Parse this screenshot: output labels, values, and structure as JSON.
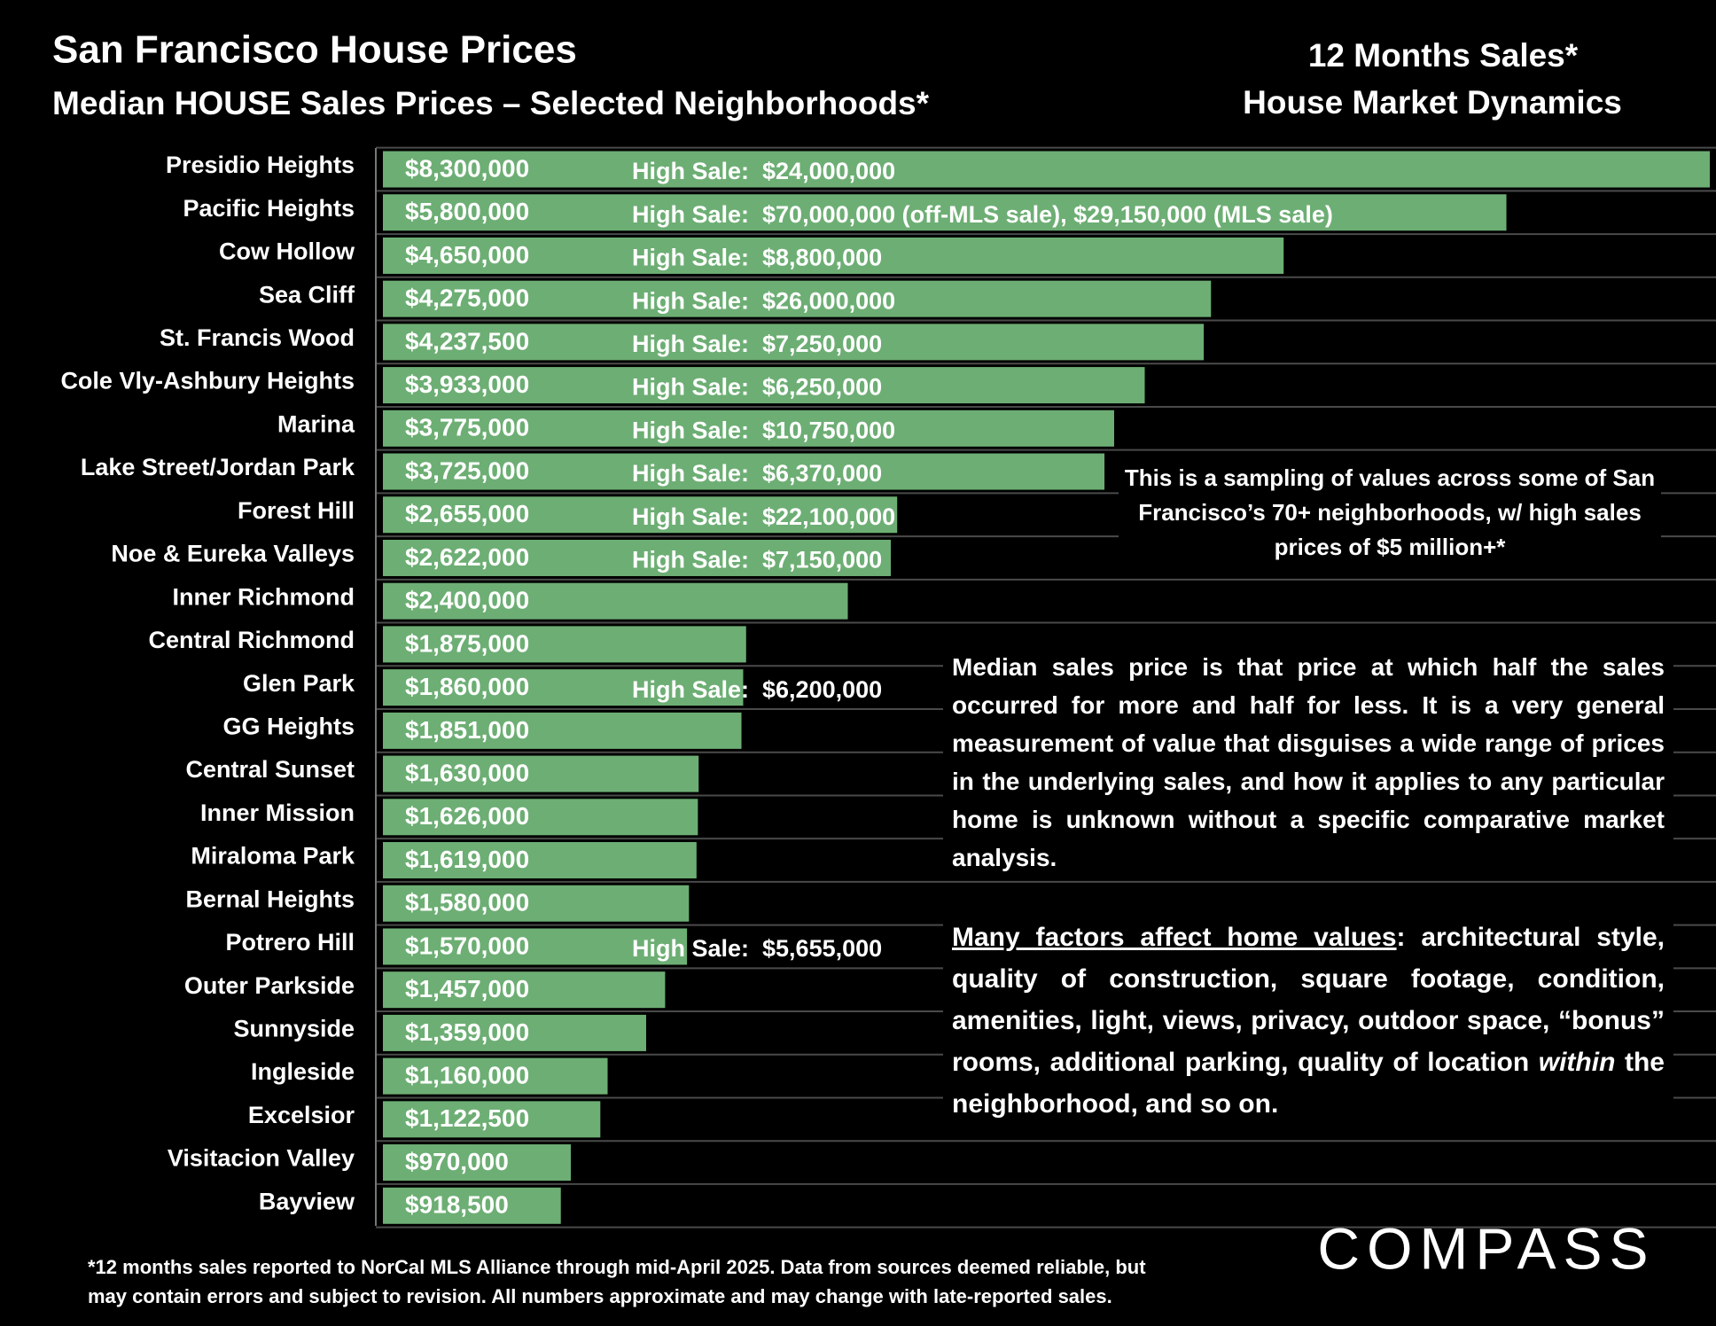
{
  "chart_data": {
    "type": "bar",
    "orientation": "horizontal",
    "title": "San Francisco House Prices",
    "subtitle": "Median HOUSE Sales Prices – Selected Neighborhoods*",
    "categories": [
      "Presidio Heights",
      "Pacific Heights",
      "Cow Hollow",
      "Sea Cliff",
      "St. Francis Wood",
      "Cole Vly-Ashbury Heights",
      "Marina",
      "Lake Street/Jordan Park",
      "Forest Hill",
      "Noe & Eureka Valleys",
      "Inner Richmond",
      "Central Richmond",
      "Glen Park",
      "GG Heights",
      "Central Sunset",
      "Inner Mission",
      "Miraloma Park",
      "Bernal Heights",
      "Potrero Hill",
      "Outer Parkside",
      "Sunnyside",
      "Ingleside",
      "Excelsior",
      "Visitacion Valley",
      "Bayview"
    ],
    "values": [
      8300000,
      5800000,
      4650000,
      4275000,
      4237500,
      3933000,
      3775000,
      3725000,
      2655000,
      2622000,
      2400000,
      1875000,
      1860000,
      1851000,
      1630000,
      1626000,
      1619000,
      1580000,
      1570000,
      1457000,
      1359000,
      1160000,
      1122500,
      970000,
      918500
    ],
    "value_labels": [
      "$8,300,000",
      "$5,800,000",
      "$4,650,000",
      "$4,275,000",
      "$4,237,500",
      "$3,933,000",
      "$3,775,000",
      "$3,725,000",
      "$2,655,000",
      "$2,622,000",
      "$2,400,000",
      "$1,875,000",
      "$1,860,000",
      "$1,851,000",
      "$1,630,000",
      "$1,626,000",
      "$1,619,000",
      "$1,580,000",
      "$1,570,000",
      "$1,457,000",
      "$1,359,000",
      "$1,160,000",
      "$1,122,500",
      "$970,000",
      "$918,500"
    ],
    "high_sales": [
      "High Sale:  $24,000,000",
      "High Sale:  $70,000,000 (off-MLS sale), $29,150,000 (MLS sale)",
      "High Sale:  $8,800,000",
      "High Sale:  $26,000,000",
      "High Sale:  $7,250,000",
      "High Sale:  $6,250,000",
      "High Sale:  $10,750,000",
      "High Sale:  $6,370,000",
      "High Sale:  $22,100,000",
      "High Sale:  $7,150,000",
      null,
      null,
      "High Sale:  $6,200,000",
      null,
      null,
      null,
      null,
      null,
      "High Sale:  $5,655,000",
      null,
      null,
      null,
      null,
      null,
      null
    ],
    "color": "#6dae74",
    "xlim": [
      0,
      6850000
    ]
  },
  "header": {
    "line1": "12 Months Sales*",
    "line2": "House Market Dynamics"
  },
  "notes": {
    "sampling": "This is a sampling of values across some of San Francisco’s 70+ neighborhoods, w/ high sales prices of $5 million+*",
    "median": "Median sales price is that price at which half the sales occurred for more and half for less. It is a very general measurement of value that disguises a wide range of prices in the underlying sales, and how it applies to any particular home is unknown without a specific comparative market analysis.",
    "factors": [
      "Many factors affect home values",
      ": architectural style, quality of construction, square footage, condition, amenities, light, views, privacy, outdoor space, “bonus” rooms, additional parking, quality of location ",
      "within",
      " the neighborhood, and so on."
    ]
  },
  "footnote": [
    "*12 months sales reported to NorCal MLS Alliance through mid-April 2025. Data from sources deemed reliable, but",
    "may contain errors and subject to revision. All numbers approximate and may change with late-reported sales."
  ],
  "logo": "COMPASS"
}
